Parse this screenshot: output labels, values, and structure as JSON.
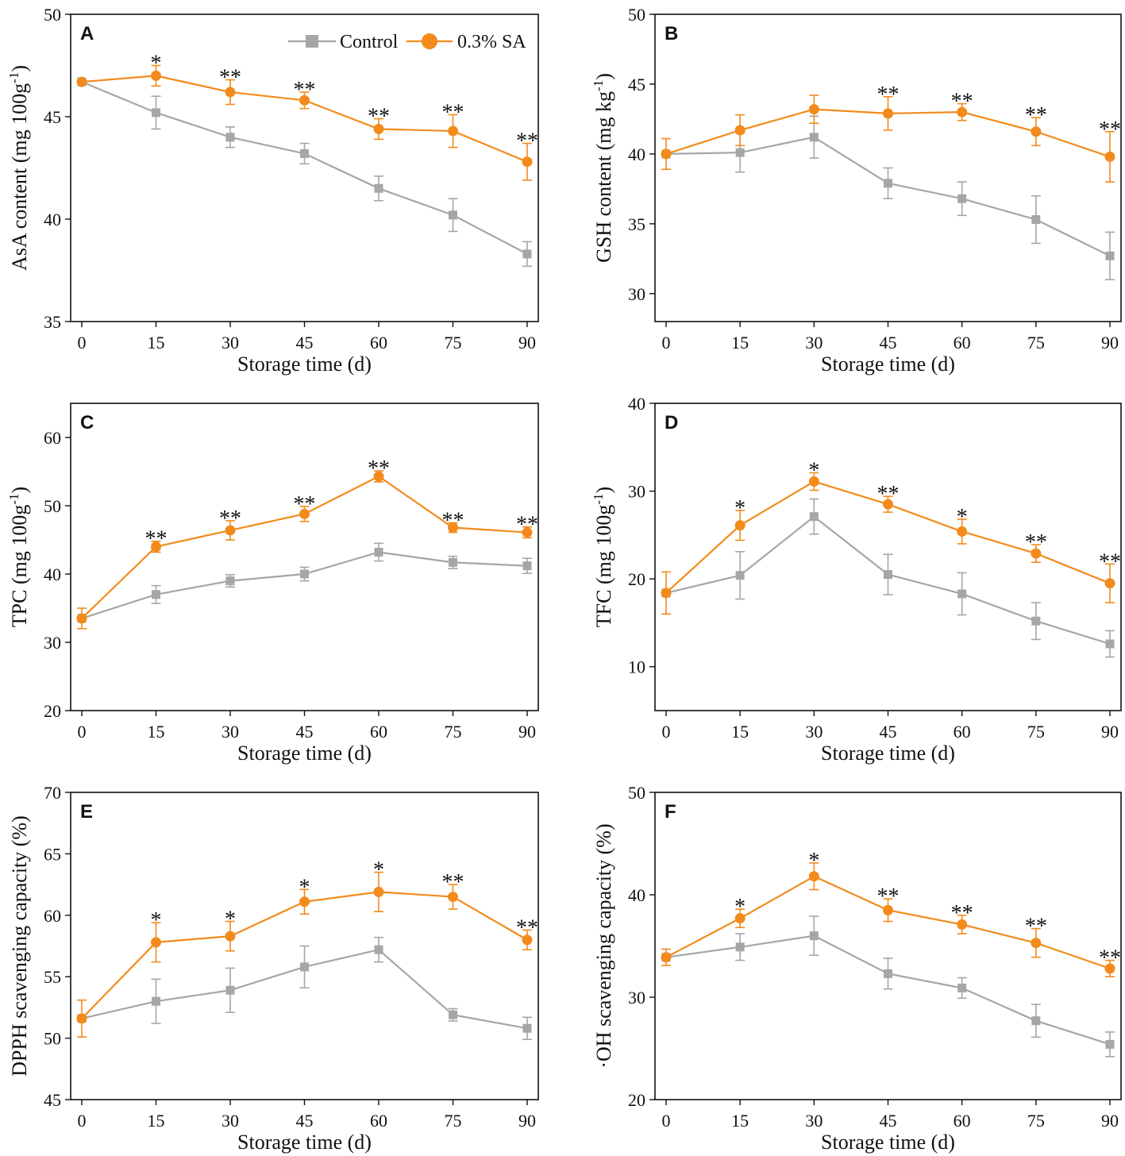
{
  "legend": {
    "control": "Control",
    "treatment": "0.3% SA",
    "control_color": "#a6a6a6",
    "treatment_color": "#f28b1c"
  },
  "chart_data": [
    {
      "type": "line",
      "panel": "A",
      "xlabel": "Storage time (d)",
      "ylabel": "AsA content (mg 100g-1)",
      "ylabel_parts": {
        "main": "AsA content (mg 100g",
        "sup": "-1",
        "end": ")"
      },
      "x": [
        0,
        15,
        30,
        45,
        60,
        75,
        90
      ],
      "xticks": [
        "0",
        "15",
        "30",
        "45",
        "60",
        "75",
        "90"
      ],
      "ylim": [
        35,
        50
      ],
      "yticks": [
        35,
        40,
        45,
        50
      ],
      "series": [
        {
          "name": "Control",
          "values": [
            46.7,
            45.2,
            44.0,
            43.2,
            41.5,
            40.2,
            38.3
          ],
          "errors": [
            0,
            0.8,
            0.5,
            0.5,
            0.6,
            0.8,
            0.6
          ]
        },
        {
          "name": "0.3% SA",
          "values": [
            46.7,
            47.0,
            46.2,
            45.8,
            44.4,
            44.3,
            42.8
          ],
          "errors": [
            0,
            0.5,
            0.6,
            0.4,
            0.5,
            0.8,
            0.9
          ]
        }
      ],
      "significance": [
        "",
        "*",
        "**",
        "**",
        "**",
        "**",
        "**"
      ]
    },
    {
      "type": "line",
      "panel": "B",
      "xlabel": "Storage time (d)",
      "ylabel": "GSH content (mg kg-1)",
      "ylabel_parts": {
        "main": "GSH content (mg kg",
        "sup": "-1",
        "end": ")"
      },
      "x": [
        0,
        15,
        30,
        45,
        60,
        75,
        90
      ],
      "xticks": [
        "0",
        "15",
        "30",
        "45",
        "60",
        "75",
        "90"
      ],
      "ylim": [
        28,
        50
      ],
      "yticks": [
        30,
        35,
        40,
        45,
        50
      ],
      "series": [
        {
          "name": "Control",
          "values": [
            40.0,
            40.1,
            41.2,
            37.9,
            36.8,
            35.3,
            32.7
          ],
          "errors": [
            0,
            1.4,
            1.5,
            1.1,
            1.2,
            1.7,
            1.7
          ]
        },
        {
          "name": "0.3% SA",
          "values": [
            40.0,
            41.7,
            43.2,
            42.9,
            43.0,
            41.6,
            39.8
          ],
          "errors": [
            1.1,
            1.1,
            1.0,
            1.2,
            0.6,
            1.0,
            1.8
          ]
        }
      ],
      "significance": [
        "",
        "",
        "",
        "**",
        "**",
        "**",
        "**"
      ]
    },
    {
      "type": "line",
      "panel": "C",
      "xlabel": "Storage time (d)",
      "ylabel": "TPC (mg 100g-1)",
      "ylabel_parts": {
        "main": "TPC (mg 100g",
        "sup": "-1",
        "end": ")"
      },
      "x": [
        0,
        15,
        30,
        45,
        60,
        75,
        90
      ],
      "xticks": [
        "0",
        "15",
        "30",
        "45",
        "60",
        "75",
        "90"
      ],
      "ylim": [
        20,
        65
      ],
      "yticks": [
        20,
        30,
        40,
        50,
        60
      ],
      "series": [
        {
          "name": "Control",
          "values": [
            33.5,
            37.0,
            39.0,
            40.0,
            43.2,
            41.7,
            41.2
          ],
          "errors": [
            0,
            1.3,
            0.9,
            1.0,
            1.3,
            0.9,
            1.1
          ]
        },
        {
          "name": "0.3% SA",
          "values": [
            33.5,
            44.0,
            46.4,
            48.8,
            54.3,
            46.8,
            46.1
          ],
          "errors": [
            1.5,
            0.8,
            1.4,
            1.1,
            0.8,
            0.7,
            0.8
          ]
        }
      ],
      "significance": [
        "",
        "**",
        "**",
        "**",
        "**",
        "**",
        "**"
      ]
    },
    {
      "type": "line",
      "panel": "D",
      "xlabel": "Storage time (d)",
      "ylabel": "TFC (mg 100g-1)",
      "ylabel_parts": {
        "main": "TFC (mg 100g",
        "sup": "-1",
        "end": ")"
      },
      "x": [
        0,
        15,
        30,
        45,
        60,
        75,
        90
      ],
      "xticks": [
        "0",
        "15",
        "30",
        "45",
        "60",
        "75",
        "90"
      ],
      "ylim": [
        5,
        40
      ],
      "yticks": [
        10,
        20,
        30,
        40
      ],
      "series": [
        {
          "name": "Control",
          "values": [
            18.4,
            20.4,
            27.1,
            20.5,
            18.3,
            15.2,
            12.6
          ],
          "errors": [
            0,
            2.7,
            2.0,
            2.3,
            2.4,
            2.1,
            1.5
          ]
        },
        {
          "name": "0.3% SA",
          "values": [
            18.4,
            26.1,
            31.1,
            28.5,
            25.4,
            22.9,
            19.5
          ],
          "errors": [
            2.4,
            1.7,
            1.0,
            0.9,
            1.4,
            1.0,
            2.2
          ]
        }
      ],
      "significance": [
        "",
        "*",
        "*",
        "**",
        "*",
        "**",
        "**"
      ]
    },
    {
      "type": "line",
      "panel": "E",
      "xlabel": "Storage time (d)",
      "ylabel": "DPPH scavenging capacity (%)",
      "ylabel_parts": {
        "main": "DPPH scavenging capacity (%)",
        "sup": "",
        "end": ""
      },
      "x": [
        0,
        15,
        30,
        45,
        60,
        75,
        90
      ],
      "xticks": [
        "0",
        "15",
        "30",
        "45",
        "60",
        "75",
        "90"
      ],
      "ylim": [
        45,
        70
      ],
      "yticks": [
        45,
        50,
        55,
        60,
        65,
        70
      ],
      "series": [
        {
          "name": "Control",
          "values": [
            51.6,
            53.0,
            53.9,
            55.8,
            57.2,
            51.9,
            50.8
          ],
          "errors": [
            0,
            1.8,
            1.8,
            1.7,
            1.0,
            0.5,
            0.9
          ]
        },
        {
          "name": "0.3% SA",
          "values": [
            51.6,
            57.8,
            58.3,
            61.1,
            61.9,
            61.5,
            58.0
          ],
          "errors": [
            1.5,
            1.6,
            1.2,
            1.0,
            1.6,
            1.0,
            0.8
          ]
        }
      ],
      "significance": [
        "",
        "*",
        "*",
        "*",
        "*",
        "**",
        "**"
      ]
    },
    {
      "type": "line",
      "panel": "F",
      "xlabel": "Storage time (d)",
      "ylabel": "·OH scavenging capacity (%)",
      "ylabel_parts": {
        "main": "·OH scavenging capacity (%)",
        "sup": "",
        "end": ""
      },
      "x": [
        0,
        15,
        30,
        45,
        60,
        75,
        90
      ],
      "xticks": [
        "0",
        "15",
        "30",
        "45",
        "60",
        "75",
        "90"
      ],
      "ylim": [
        20,
        50
      ],
      "yticks": [
        20,
        30,
        40,
        50
      ],
      "series": [
        {
          "name": "Control",
          "values": [
            33.9,
            34.9,
            36.0,
            32.3,
            30.9,
            27.7,
            25.4
          ],
          "errors": [
            0,
            1.3,
            1.9,
            1.5,
            1.0,
            1.6,
            1.2
          ]
        },
        {
          "name": "0.3% SA",
          "values": [
            33.9,
            37.7,
            41.8,
            38.5,
            37.1,
            35.3,
            32.8
          ],
          "errors": [
            0.8,
            0.9,
            1.3,
            1.1,
            0.9,
            1.4,
            0.8
          ]
        }
      ],
      "significance": [
        "",
        "*",
        "*",
        "**",
        "**",
        "**",
        "**"
      ]
    }
  ]
}
